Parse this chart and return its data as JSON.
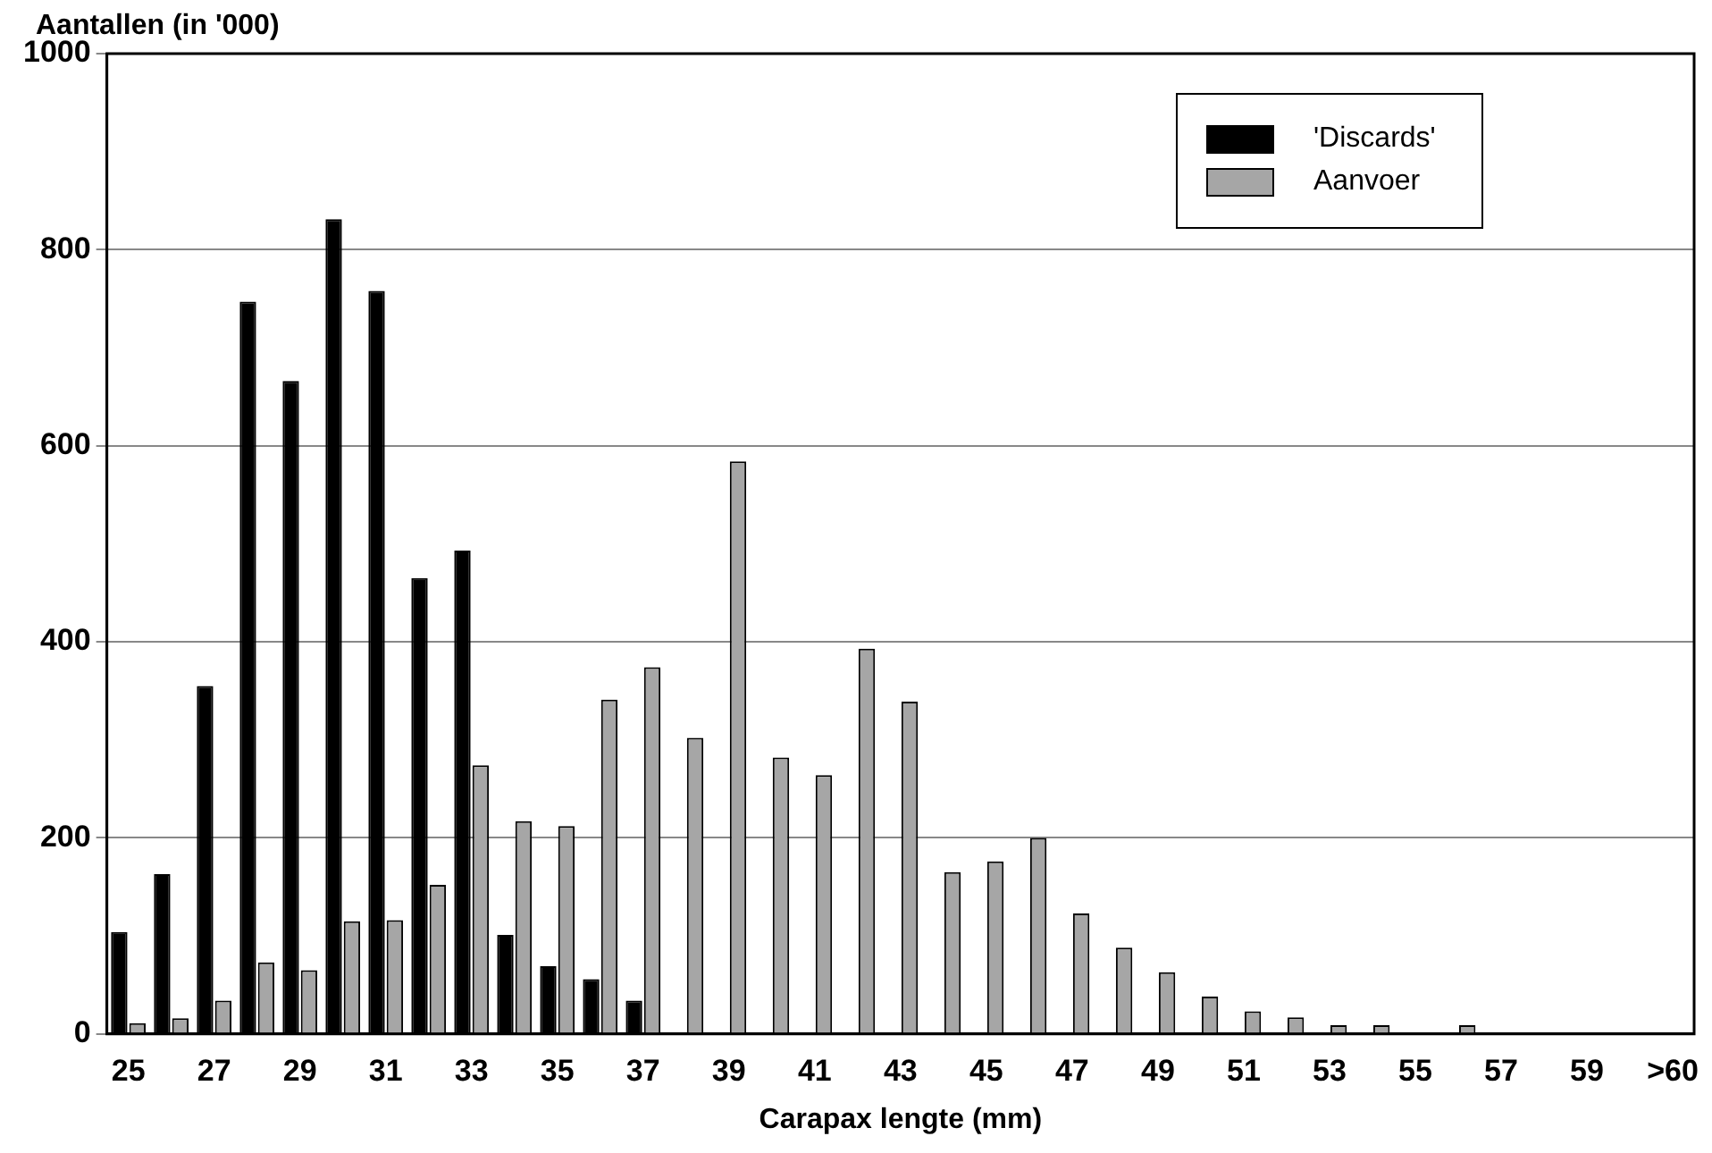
{
  "chart_data": {
    "type": "bar",
    "xlabel": "Carapax lengte (mm)",
    "ylabel": "Aantallen (in '000)",
    "categories": [
      "25",
      null,
      "27",
      null,
      "29",
      null,
      "31",
      null,
      "33",
      null,
      "35",
      null,
      "37",
      null,
      "39",
      null,
      "41",
      null,
      "43",
      null,
      "45",
      null,
      "47",
      null,
      "49",
      null,
      "51",
      null,
      "53",
      null,
      "55",
      null,
      "57",
      null,
      "59",
      null,
      ">60"
    ],
    "series": [
      {
        "name": "'Discards'",
        "color": "#000000",
        "values": [
          104,
          163,
          355,
          747,
          666,
          831,
          758,
          465,
          493,
          101,
          69,
          56,
          34,
          null,
          null,
          null,
          null,
          null,
          null,
          null,
          null,
          null,
          null,
          null,
          null,
          null,
          null,
          null,
          null,
          null,
          null,
          null,
          null,
          null,
          null,
          null,
          null
        ]
      },
      {
        "name": "Aanvoer",
        "color": "#a6a6a6",
        "values": [
          11,
          16,
          34,
          73,
          65,
          115,
          116,
          152,
          274,
          217,
          212,
          341,
          374,
          302,
          584,
          282,
          264,
          393,
          339,
          165,
          176,
          200,
          123,
          88,
          63,
          38,
          23,
          17,
          9,
          9,
          null,
          9,
          null,
          null,
          null,
          null,
          null
        ]
      }
    ],
    "ylim": [
      0,
      1000
    ],
    "yticks": [
      0,
      200,
      400,
      600,
      800,
      1000
    ],
    "grid": "y",
    "legend": "top right"
  }
}
